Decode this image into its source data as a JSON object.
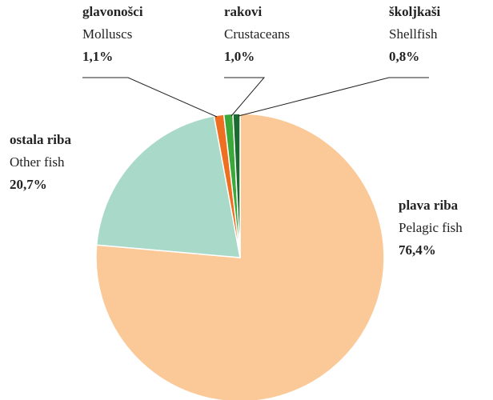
{
  "chart_data": {
    "type": "pie",
    "categories": [
      "plava riba",
      "ostala riba",
      "glavonošci",
      "rakovi",
      "školjkaši"
    ],
    "categories_en": [
      "Pelagic fish",
      "Other fish",
      "Molluscs",
      "Crustaceans",
      "Shellfish"
    ],
    "values": [
      76.4,
      20.7,
      1.1,
      1.0,
      0.8
    ],
    "value_labels": [
      "76,4%",
      "20,7%",
      "1,1%",
      "1,0%",
      "0,8%"
    ],
    "colors": [
      "#fbc998",
      "#a8d9c9",
      "#ef6f22",
      "#3aa93a",
      "#1b6a31"
    ]
  }
}
